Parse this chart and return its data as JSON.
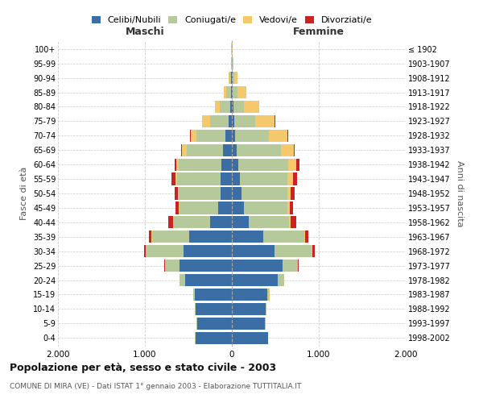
{
  "age_groups": [
    "0-4",
    "5-9",
    "10-14",
    "15-19",
    "20-24",
    "25-29",
    "30-34",
    "35-39",
    "40-44",
    "45-49",
    "50-54",
    "55-59",
    "60-64",
    "65-69",
    "70-74",
    "75-79",
    "80-84",
    "85-89",
    "90-94",
    "95-99",
    "100+"
  ],
  "birth_years": [
    "1998-2002",
    "1993-1997",
    "1988-1992",
    "1983-1987",
    "1978-1982",
    "1973-1977",
    "1968-1972",
    "1963-1967",
    "1958-1962",
    "1953-1957",
    "1948-1952",
    "1943-1947",
    "1938-1942",
    "1933-1937",
    "1928-1932",
    "1923-1927",
    "1918-1922",
    "1913-1917",
    "1908-1912",
    "1903-1907",
    "≤ 1902"
  ],
  "maschi": {
    "celibi": [
      420,
      400,
      420,
      430,
      540,
      600,
      560,
      490,
      250,
      160,
      130,
      130,
      120,
      100,
      75,
      40,
      20,
      10,
      5,
      3,
      2
    ],
    "coniugati": [
      5,
      5,
      5,
      15,
      60,
      170,
      430,
      430,
      420,
      440,
      480,
      500,
      490,
      420,
      330,
      210,
      120,
      55,
      20,
      5,
      2
    ],
    "vedovi": [
      0,
      0,
      0,
      0,
      1,
      2,
      2,
      3,
      5,
      8,
      10,
      20,
      30,
      50,
      70,
      90,
      55,
      25,
      10,
      3,
      1
    ],
    "divorziati": [
      0,
      0,
      0,
      0,
      2,
      5,
      20,
      30,
      60,
      40,
      40,
      40,
      20,
      10,
      5,
      3,
      2,
      0,
      0,
      0,
      0
    ]
  },
  "femmine": {
    "nubili": [
      415,
      380,
      390,
      410,
      530,
      580,
      490,
      360,
      190,
      140,
      110,
      90,
      75,
      55,
      40,
      25,
      15,
      10,
      5,
      3,
      2
    ],
    "coniugate": [
      5,
      5,
      5,
      20,
      70,
      180,
      430,
      470,
      470,
      500,
      530,
      550,
      570,
      510,
      390,
      240,
      120,
      55,
      20,
      5,
      2
    ],
    "vedove": [
      0,
      0,
      0,
      1,
      2,
      3,
      5,
      8,
      15,
      25,
      40,
      60,
      100,
      150,
      210,
      230,
      180,
      100,
      40,
      8,
      2
    ],
    "divorziate": [
      0,
      0,
      0,
      0,
      2,
      5,
      25,
      40,
      65,
      40,
      45,
      50,
      30,
      10,
      5,
      3,
      2,
      0,
      0,
      0,
      0
    ]
  },
  "colors": {
    "celibi": "#3a6ea5",
    "coniugati": "#b5c99a",
    "vedovi": "#f5c96b",
    "divorziati": "#cc2222"
  },
  "legend_labels": [
    "Celibi/Nubili",
    "Coniugati/e",
    "Vedovi/e",
    "Divorziati/e"
  ],
  "title": "Popolazione per età, sesso e stato civile - 2003",
  "subtitle": "COMUNE DI MIRA (VE) - Dati ISTAT 1° gennaio 2003 - Elaborazione TUTTITALIA.IT",
  "xlabel_left": "Maschi",
  "xlabel_right": "Femmine",
  "ylabel_left": "Fasce di età",
  "ylabel_right": "Anni di nascita",
  "xlim": 2000,
  "background_color": "#ffffff",
  "grid_color": "#cccccc"
}
